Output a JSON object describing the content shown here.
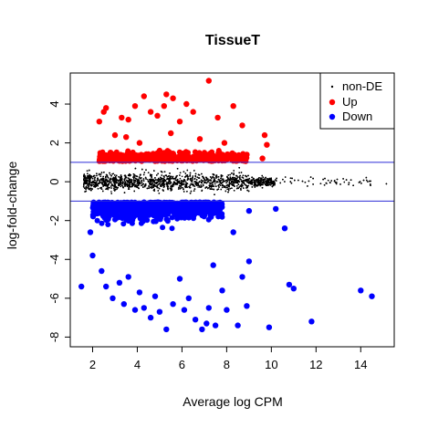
{
  "chart_data": {
    "type": "scatter",
    "title": "TissueT",
    "xlabel": "Average log CPM",
    "ylabel": "log-fold-change",
    "xlim": [
      1.0,
      15.5
    ],
    "ylim": [
      -8.5,
      5.6
    ],
    "x_ticks": [
      "2",
      "4",
      "6",
      "8",
      "10",
      "12",
      "14"
    ],
    "y_ticks": [
      "-8",
      "-6",
      "-4",
      "-2",
      "0",
      "2",
      "4"
    ],
    "reference_lines_y": [
      1,
      -1
    ],
    "legend": {
      "position": "top-right",
      "entries": [
        {
          "label": "non-DE",
          "color": "#000000",
          "marker": "small-dot"
        },
        {
          "label": "Up",
          "color": "#ff0000",
          "marker": "dot"
        },
        {
          "label": "Down",
          "color": "#0000ff",
          "marker": "dot"
        }
      ]
    },
    "series": [
      {
        "name": "Up",
        "color": "#ff0000",
        "points": [
          [
            2.3,
            3.1
          ],
          [
            2.5,
            3.6
          ],
          [
            2.6,
            3.8
          ],
          [
            3.0,
            2.4
          ],
          [
            3.3,
            3.3
          ],
          [
            3.6,
            3.2
          ],
          [
            3.9,
            3.9
          ],
          [
            4.3,
            4.4
          ],
          [
            4.6,
            3.6
          ],
          [
            4.9,
            3.4
          ],
          [
            5.2,
            3.9
          ],
          [
            5.3,
            4.5
          ],
          [
            5.6,
            4.3
          ],
          [
            5.9,
            3.1
          ],
          [
            6.2,
            4.0
          ],
          [
            6.5,
            3.6
          ],
          [
            7.2,
            5.2
          ],
          [
            7.6,
            3.3
          ],
          [
            8.3,
            3.9
          ],
          [
            8.7,
            2.9
          ],
          [
            9.7,
            2.4
          ],
          [
            9.8,
            1.9
          ],
          [
            3.5,
            2.3
          ],
          [
            4.1,
            2.0
          ],
          [
            5.5,
            2.5
          ],
          [
            6.8,
            2.2
          ],
          [
            7.9,
            2.0
          ],
          [
            2.8,
            1.5
          ],
          [
            5.0,
            1.6
          ],
          [
            8.9,
            1.4
          ],
          [
            9.6,
            1.2
          ]
        ]
      },
      {
        "name": "Down",
        "color": "#0000ff",
        "points": [
          [
            1.9,
            -2.6
          ],
          [
            2.0,
            -3.8
          ],
          [
            2.4,
            -4.6
          ],
          [
            2.6,
            -5.4
          ],
          [
            2.9,
            -6.0
          ],
          [
            3.2,
            -5.2
          ],
          [
            3.4,
            -6.3
          ],
          [
            3.6,
            -4.9
          ],
          [
            3.9,
            -6.6
          ],
          [
            4.1,
            -5.7
          ],
          [
            4.3,
            -6.5
          ],
          [
            4.6,
            -7.0
          ],
          [
            4.8,
            -5.9
          ],
          [
            5.0,
            -6.7
          ],
          [
            5.3,
            -7.6
          ],
          [
            5.6,
            -6.3
          ],
          [
            5.9,
            -5.0
          ],
          [
            6.1,
            -6.6
          ],
          [
            6.3,
            -6.0
          ],
          [
            6.6,
            -7.1
          ],
          [
            6.9,
            -7.6
          ],
          [
            7.1,
            -7.3
          ],
          [
            7.2,
            -6.5
          ],
          [
            7.5,
            -7.4
          ],
          [
            7.8,
            -5.6
          ],
          [
            8.0,
            -6.6
          ],
          [
            8.5,
            -7.4
          ],
          [
            8.9,
            -6.4
          ],
          [
            9.9,
            -7.5
          ],
          [
            10.8,
            -5.3
          ],
          [
            11.0,
            -5.5
          ],
          [
            11.8,
            -7.2
          ],
          [
            14.0,
            -5.6
          ],
          [
            14.5,
            -5.9
          ],
          [
            1.5,
            -5.4
          ],
          [
            8.7,
            -4.9
          ],
          [
            9.0,
            -4.1
          ],
          [
            10.6,
            -2.4
          ],
          [
            8.3,
            -2.6
          ],
          [
            9.0,
            -1.5
          ],
          [
            10.2,
            -1.4
          ],
          [
            7.4,
            -4.3
          ]
        ]
      }
    ]
  }
}
